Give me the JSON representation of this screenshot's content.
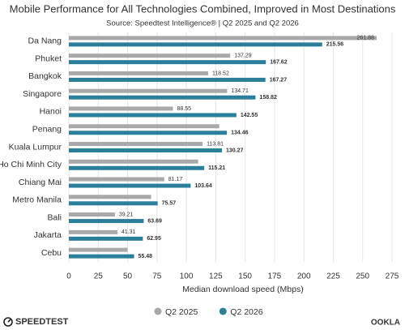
{
  "chart_data": {
    "type": "hbar",
    "title": "Mobile Performance for All Technologies Combined, Improved in Most Destinations",
    "subtitle": "Source: Speedtest Intelligence® | Q2 2025 and Q2 2026",
    "x_label": "Median download speed (Mbps)",
    "categories": [
      "Da Nang",
      "Phuket",
      "Bangkok",
      "Singapore",
      "Hanoi",
      "Penang",
      "Kuala Lumpur",
      "Ho Chi Minh City",
      "Chiang Mai",
      "Metro Manila",
      "Bali",
      "Jakarta",
      "Cebu"
    ],
    "series": [
      {
        "name": "Q2 2025",
        "color": "#a9a9a9",
        "values": [
          261.88,
          137.29,
          118.52,
          134.71,
          88.55,
          128,
          113.81,
          110,
          81.17,
          70,
          39.21,
          41.31,
          50
        ],
        "value_labels": [
          "261.88",
          "137.29",
          "118.52",
          "134.71",
          "88.55",
          null,
          "113.81",
          null,
          "81.17",
          null,
          "39.21",
          "41.31",
          null
        ]
      },
      {
        "name": "Q2 2026",
        "color": "#2b7f9b",
        "values": [
          215.56,
          167.62,
          167.27,
          158.82,
          142.55,
          134.46,
          130.27,
          115.21,
          103.64,
          75.57,
          63.69,
          62.95,
          55.48
        ]
      }
    ],
    "xlim": [
      0,
      275
    ],
    "xticks": [
      0,
      25,
      50,
      75,
      100,
      125,
      150,
      175,
      200,
      225,
      250,
      275
    ],
    "grid": true,
    "legend": "bottom",
    "logo_left": "SPEEDTEST",
    "logo_right": "OOKLA"
  }
}
